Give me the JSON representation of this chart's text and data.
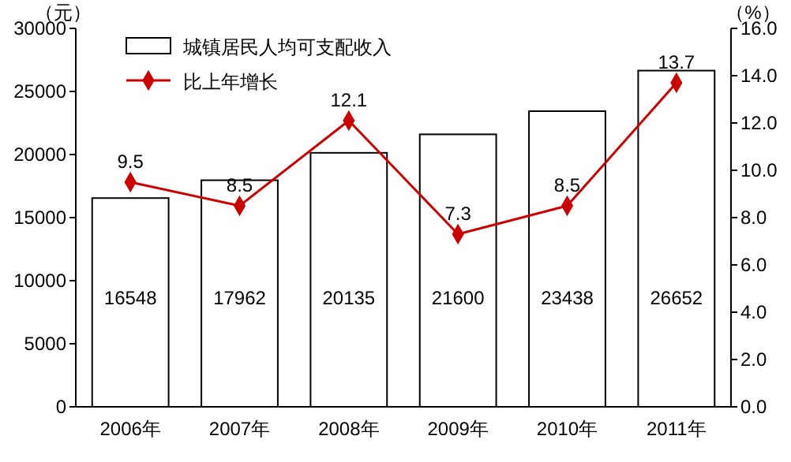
{
  "chart_data": {
    "type": "bar",
    "ylabel": "（元）",
    "y2label": "（%）",
    "categories": [
      "2006年",
      "2007年",
      "2008年",
      "2009年",
      "2010年",
      "2011年"
    ],
    "series": [
      {
        "name": "城镇居民人均可支配收入",
        "color": "#ffffff",
        "values": [
          16548,
          17962,
          20135,
          21600,
          23438,
          26652
        ]
      },
      {
        "name": "比上年增长",
        "type": "line",
        "axis": "y2",
        "color": "#cc0000",
        "values": [
          9.5,
          8.5,
          12.1,
          7.3,
          8.5,
          13.7
        ],
        "marker": "diamond"
      }
    ],
    "data_labels": true,
    "ylim": [
      0,
      30000
    ],
    "yticks": [
      0,
      5000,
      10000,
      15000,
      20000,
      25000,
      30000
    ],
    "y2lim": [
      0,
      16
    ],
    "y2ticks": [
      {
        "value": 0,
        "label": "0.0"
      },
      {
        "value": 2,
        "label": "2.0"
      },
      {
        "value": 4,
        "label": "4.0"
      },
      {
        "value": 6,
        "label": "6.0"
      },
      {
        "value": 8,
        "label": "8.0"
      },
      {
        "value": 10,
        "label": "10.0"
      },
      {
        "value": 12,
        "label": "12.0"
      },
      {
        "value": 14,
        "label": "14.0"
      },
      {
        "value": 16,
        "label": "16.0"
      }
    ],
    "legend": "top left",
    "grid": false
  }
}
